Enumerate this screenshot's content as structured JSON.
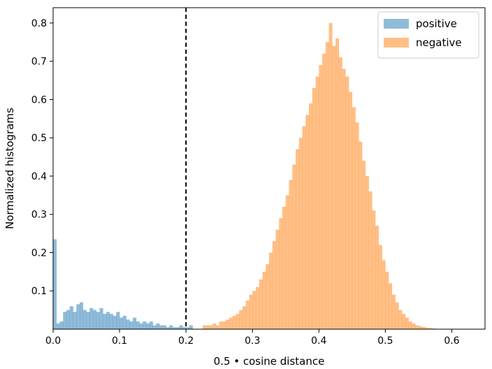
{
  "chart_data": {
    "type": "histogram",
    "title": "",
    "xlabel": "0.5 • cosine distance",
    "ylabel": "Normalized histograms",
    "xlim": [
      0.0,
      0.65
    ],
    "ylim": [
      0.0,
      0.84
    ],
    "xticks": [
      0.0,
      0.1,
      0.2,
      0.3,
      0.4,
      0.5,
      0.6
    ],
    "xtick_labels": [
      "0.0",
      "0.1",
      "0.2",
      "0.3",
      "0.4",
      "0.5",
      "0.6"
    ],
    "yticks": [
      0.1,
      0.2,
      0.3,
      0.4,
      0.5,
      0.6,
      0.7,
      0.8
    ],
    "ytick_labels": [
      "0.1",
      "0.2",
      "0.3",
      "0.4",
      "0.5",
      "0.6",
      "0.7",
      "0.8"
    ],
    "grid": false,
    "legend_position": "top-right",
    "threshold_line": {
      "x": 0.2,
      "style": "dashed",
      "color": "#000000"
    },
    "series": [
      {
        "name": "positive",
        "color": "#1f77b4",
        "alpha": 0.5,
        "bin_width": 0.005,
        "bins": [
          [
            0.0,
            0.235
          ],
          [
            0.005,
            0.015
          ],
          [
            0.01,
            0.02
          ],
          [
            0.015,
            0.045
          ],
          [
            0.02,
            0.05
          ],
          [
            0.025,
            0.06
          ],
          [
            0.03,
            0.045
          ],
          [
            0.035,
            0.065
          ],
          [
            0.04,
            0.07
          ],
          [
            0.045,
            0.05
          ],
          [
            0.05,
            0.045
          ],
          [
            0.055,
            0.055
          ],
          [
            0.06,
            0.05
          ],
          [
            0.065,
            0.045
          ],
          [
            0.07,
            0.055
          ],
          [
            0.075,
            0.04
          ],
          [
            0.08,
            0.045
          ],
          [
            0.085,
            0.04
          ],
          [
            0.09,
            0.035
          ],
          [
            0.095,
            0.045
          ],
          [
            0.1,
            0.03
          ],
          [
            0.105,
            0.035
          ],
          [
            0.11,
            0.025
          ],
          [
            0.115,
            0.02
          ],
          [
            0.12,
            0.03
          ],
          [
            0.125,
            0.02
          ],
          [
            0.13,
            0.015
          ],
          [
            0.135,
            0.02
          ],
          [
            0.14,
            0.015
          ],
          [
            0.145,
            0.02
          ],
          [
            0.15,
            0.01
          ],
          [
            0.155,
            0.015
          ],
          [
            0.16,
            0.01
          ],
          [
            0.165,
            0.01
          ],
          [
            0.17,
            0.005
          ],
          [
            0.175,
            0.01
          ],
          [
            0.18,
            0.005
          ],
          [
            0.185,
            0.005
          ],
          [
            0.19,
            0.01
          ],
          [
            0.195,
            0.005
          ],
          [
            0.2,
            0.005
          ],
          [
            0.205,
            0.01
          ]
        ]
      },
      {
        "name": "negative",
        "color": "#ff7f0e",
        "alpha": 0.5,
        "bin_width": 0.005,
        "bins": [
          [
            0.225,
            0.01
          ],
          [
            0.23,
            0.01
          ],
          [
            0.235,
            0.01
          ],
          [
            0.24,
            0.015
          ],
          [
            0.245,
            0.01
          ],
          [
            0.25,
            0.02
          ],
          [
            0.255,
            0.02
          ],
          [
            0.26,
            0.025
          ],
          [
            0.265,
            0.03
          ],
          [
            0.27,
            0.035
          ],
          [
            0.275,
            0.04
          ],
          [
            0.28,
            0.05
          ],
          [
            0.285,
            0.06
          ],
          [
            0.29,
            0.075
          ],
          [
            0.295,
            0.09
          ],
          [
            0.3,
            0.1
          ],
          [
            0.305,
            0.11
          ],
          [
            0.31,
            0.13
          ],
          [
            0.315,
            0.15
          ],
          [
            0.32,
            0.17
          ],
          [
            0.325,
            0.2
          ],
          [
            0.33,
            0.23
          ],
          [
            0.335,
            0.26
          ],
          [
            0.34,
            0.29
          ],
          [
            0.345,
            0.32
          ],
          [
            0.35,
            0.35
          ],
          [
            0.355,
            0.39
          ],
          [
            0.36,
            0.43
          ],
          [
            0.365,
            0.47
          ],
          [
            0.37,
            0.5
          ],
          [
            0.375,
            0.53
          ],
          [
            0.38,
            0.56
          ],
          [
            0.385,
            0.59
          ],
          [
            0.39,
            0.63
          ],
          [
            0.395,
            0.66
          ],
          [
            0.4,
            0.69
          ],
          [
            0.405,
            0.72
          ],
          [
            0.41,
            0.75
          ],
          [
            0.415,
            0.8
          ],
          [
            0.42,
            0.74
          ],
          [
            0.425,
            0.76
          ],
          [
            0.43,
            0.71
          ],
          [
            0.435,
            0.68
          ],
          [
            0.44,
            0.66
          ],
          [
            0.445,
            0.62
          ],
          [
            0.45,
            0.58
          ],
          [
            0.455,
            0.54
          ],
          [
            0.46,
            0.49
          ],
          [
            0.465,
            0.44
          ],
          [
            0.47,
            0.4
          ],
          [
            0.475,
            0.36
          ],
          [
            0.48,
            0.31
          ],
          [
            0.485,
            0.27
          ],
          [
            0.49,
            0.22
          ],
          [
            0.495,
            0.18
          ],
          [
            0.5,
            0.15
          ],
          [
            0.505,
            0.12
          ],
          [
            0.51,
            0.09
          ],
          [
            0.515,
            0.07
          ],
          [
            0.52,
            0.05
          ],
          [
            0.525,
            0.04
          ],
          [
            0.53,
            0.03
          ],
          [
            0.535,
            0.02
          ],
          [
            0.54,
            0.015
          ],
          [
            0.545,
            0.01
          ],
          [
            0.55,
            0.008
          ],
          [
            0.555,
            0.006
          ],
          [
            0.56,
            0.004
          ],
          [
            0.565,
            0.003
          ],
          [
            0.57,
            0.002
          ]
        ]
      }
    ]
  }
}
